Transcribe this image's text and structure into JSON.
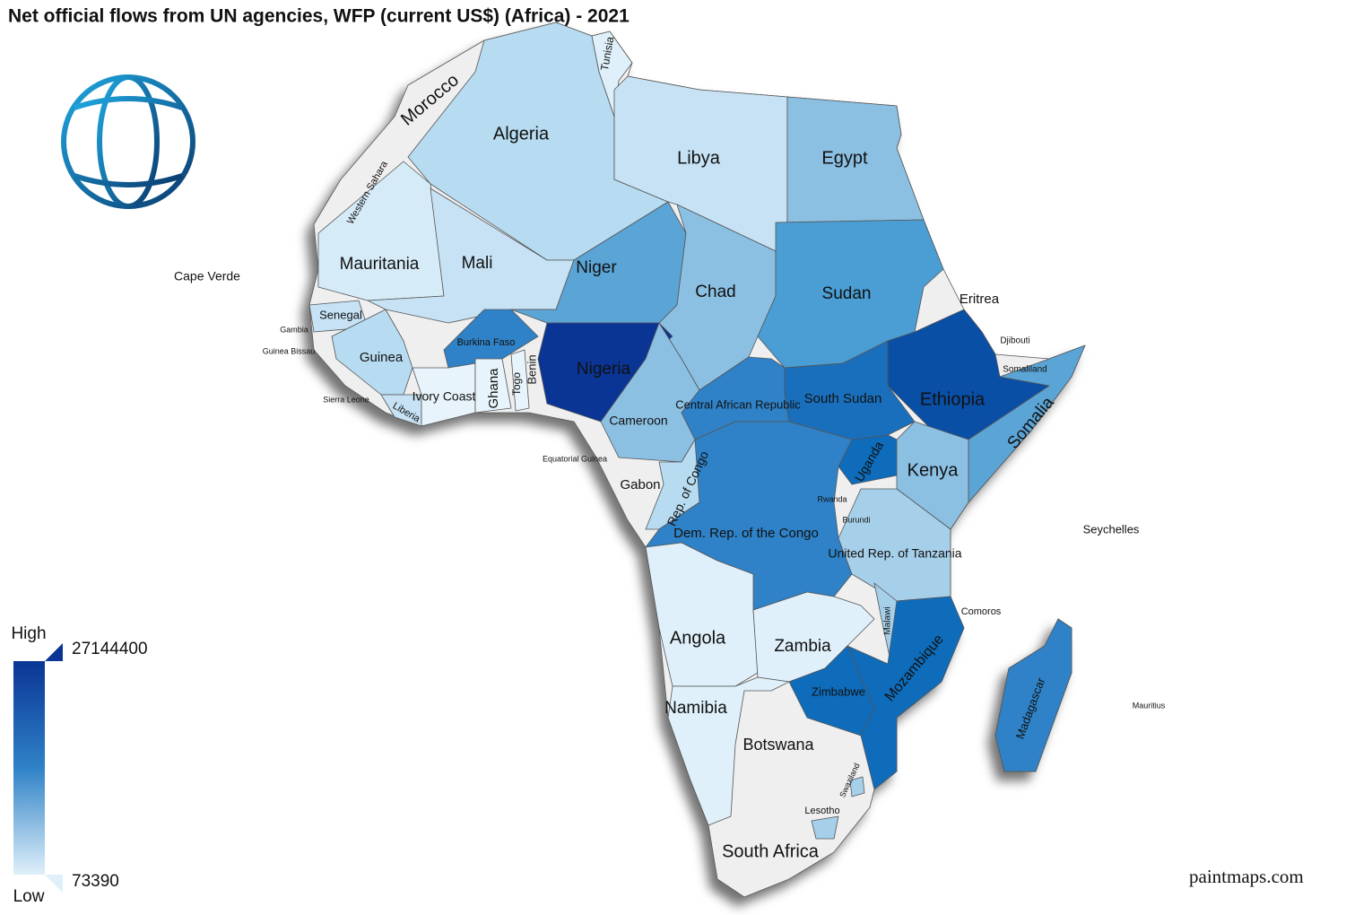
{
  "title": "Net official flows from UN agencies, WFP (current US$) (Africa) - 2021",
  "watermark": "paintmaps.com",
  "no_data_color": "#efefef",
  "legend": {
    "high_label": "High",
    "low_label": "Low",
    "max": 27144400,
    "min": 73390,
    "high_color": "#0a3595",
    "mid_color": "#2f82c7",
    "low_color": "#dff0fa"
  },
  "countries": [
    {
      "name": "Morocco",
      "color": "#efefef"
    },
    {
      "name": "Western Sahara",
      "color": "#efefef"
    },
    {
      "name": "Algeria",
      "color": "#b7dbf0"
    },
    {
      "name": "Tunisia",
      "color": "#dff0fa"
    },
    {
      "name": "Libya",
      "color": "#c6e2f4"
    },
    {
      "name": "Egypt",
      "color": "#8bc0e3"
    },
    {
      "name": "Mauritania",
      "color": "#d6ebf8"
    },
    {
      "name": "Mali",
      "color": "#c6e2f4"
    },
    {
      "name": "Niger",
      "color": "#5ba4d6"
    },
    {
      "name": "Chad",
      "color": "#8bc0e3"
    },
    {
      "name": "Sudan",
      "color": "#4a9ed3"
    },
    {
      "name": "Eritrea",
      "color": "#efefef"
    },
    {
      "name": "Cape Verde",
      "color": "#efefef"
    },
    {
      "name": "Senegal",
      "color": "#c6e2f4"
    },
    {
      "name": "Gambia",
      "color": "#c6e2f4"
    },
    {
      "name": "Guinea Bissau",
      "color": "#c6e2f4"
    },
    {
      "name": "Guinea",
      "color": "#b7dbf0"
    },
    {
      "name": "Sierra Leone",
      "color": "#c6e2f4"
    },
    {
      "name": "Liberia",
      "color": "#c6e2f4"
    },
    {
      "name": "Ivory Coast",
      "color": "#e8f4fb"
    },
    {
      "name": "Burkina Faso",
      "color": "#2f82c7"
    },
    {
      "name": "Ghana",
      "color": "#e8f4fb"
    },
    {
      "name": "Togo",
      "color": "#e8f4fb"
    },
    {
      "name": "Benin",
      "color": "#efefef"
    },
    {
      "name": "Nigeria",
      "color": "#0a3595"
    },
    {
      "name": "Cameroon",
      "color": "#8bc0e3"
    },
    {
      "name": "Central African Republic",
      "color": "#2f82c7"
    },
    {
      "name": "South Sudan",
      "color": "#1a6fbd"
    },
    {
      "name": "Ethiopia",
      "color": "#0a4fa6"
    },
    {
      "name": "Djibouti",
      "color": "#dff0fa"
    },
    {
      "name": "Somaliland",
      "color": "#efefef"
    },
    {
      "name": "Somalia",
      "color": "#5ba4d6"
    },
    {
      "name": "Equatorial Guinea",
      "color": "#efefef"
    },
    {
      "name": "Gabon",
      "color": "#efefef"
    },
    {
      "name": "Rep. of Congo",
      "color": "#b7dbf0"
    },
    {
      "name": "Uganda",
      "color": "#0e6cba"
    },
    {
      "name": "Kenya",
      "color": "#8bc0e3"
    },
    {
      "name": "Rwanda",
      "color": "#b7dbf0"
    },
    {
      "name": "Burundi",
      "color": "#b7dbf0"
    },
    {
      "name": "Dem. Rep. of the Congo",
      "color": "#2f82c7"
    },
    {
      "name": "United Rep. of Tanzania",
      "color": "#a6cfea"
    },
    {
      "name": "Seychelles",
      "color": "#efefef"
    },
    {
      "name": "Comoros",
      "color": "#efefef"
    },
    {
      "name": "Malawi",
      "color": "#a6cfea"
    },
    {
      "name": "Angola",
      "color": "#dff0fa"
    },
    {
      "name": "Zambia",
      "color": "#dff0fa"
    },
    {
      "name": "Mozambique",
      "color": "#0e6cba"
    },
    {
      "name": "Madagascar",
      "color": "#2f82c7"
    },
    {
      "name": "Mauritius",
      "color": "#efefef"
    },
    {
      "name": "Zimbabwe",
      "color": "#0e6cba"
    },
    {
      "name": "Namibia",
      "color": "#dff0fa"
    },
    {
      "name": "Botswana",
      "color": "#efefef"
    },
    {
      "name": "Swaziland",
      "color": "#a6cfea"
    },
    {
      "name": "Lesotho",
      "color": "#a6cfea"
    },
    {
      "name": "South Africa",
      "color": "#efefef"
    }
  ]
}
